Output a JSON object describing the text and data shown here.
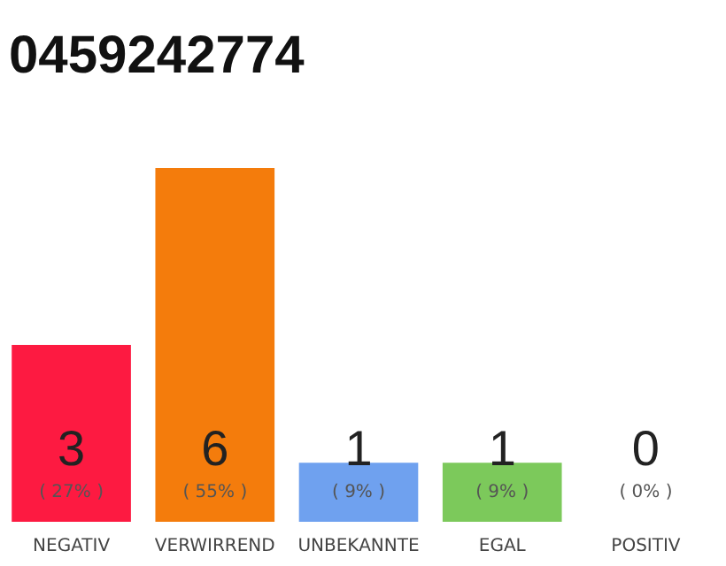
{
  "chart_data": {
    "type": "bar",
    "title": "0459242774",
    "categories": [
      "NEGATIV",
      "VERWIRREND",
      "UNBEKANNTE",
      "EGAL",
      "POSITIV"
    ],
    "values": [
      3,
      6,
      1,
      1,
      0
    ],
    "colors": [
      "#fd1a41",
      "#f47c0c",
      "#6fa1ef",
      "#7cc95b",
      "#c8c8c8"
    ],
    "data_labels": true,
    "annotations": [
      "( 27% )",
      "( 55% )",
      "( 9% )",
      "( 9% )",
      "( 0% )"
    ],
    "ylim": [
      0,
      6
    ],
    "tick_labels": "x"
  }
}
